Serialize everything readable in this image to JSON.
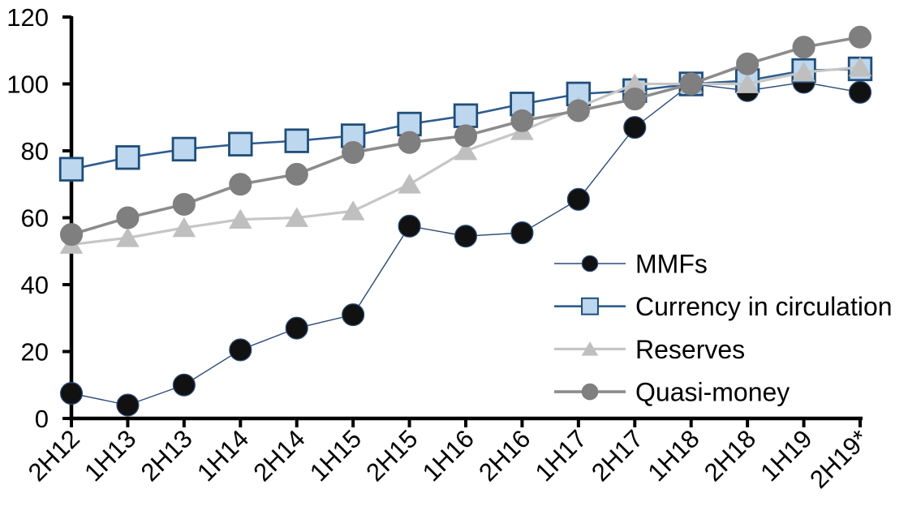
{
  "chart_data": {
    "type": "line",
    "title": "",
    "xlabel": "",
    "ylabel": "",
    "grid": false,
    "background": "#ffffff",
    "axis_color": "#000000",
    "ylim": [
      0,
      120
    ],
    "yticks": [
      0,
      20,
      40,
      60,
      80,
      100,
      120
    ],
    "legend_position": "middle-right",
    "categories": [
      "2H12",
      "1H13",
      "2H13",
      "1H14",
      "2H14",
      "1H15",
      "2H15",
      "1H16",
      "2H16",
      "1H17",
      "2H17",
      "1H18",
      "2H18",
      "1H19",
      "2H19*"
    ],
    "series": [
      {
        "name": "MMFs",
        "marker": "circle",
        "marker_fill": "#111111",
        "marker_stroke": "#2b4a78",
        "line_color": "#2b4a78",
        "line_width": 1.4,
        "values": [
          7.5,
          4,
          10,
          20.5,
          27,
          31,
          57.5,
          54.5,
          55.5,
          65.5,
          87,
          100,
          98,
          100.5,
          97.5
        ]
      },
      {
        "name": "Currency in circulation",
        "marker": "square",
        "marker_fill": "#bdd7ee",
        "marker_stroke": "#1f4e79",
        "line_color": "#2e5c8f",
        "line_width": 2.6,
        "values": [
          74.5,
          78,
          80.5,
          82,
          83,
          84.5,
          88,
          90.5,
          94,
          97,
          98,
          100,
          101,
          104,
          104.5
        ]
      },
      {
        "name": "Reserves",
        "marker": "triangle",
        "marker_fill": "#bfbfbf",
        "marker_stroke": "#bfbfbf",
        "line_color": "#c6c6c6",
        "line_width": 3.2,
        "values": [
          52,
          54,
          57,
          59.5,
          60,
          62,
          70,
          80,
          86,
          93,
          100,
          100,
          100,
          103.5,
          105
        ]
      },
      {
        "name": "Quasi-money",
        "marker": "circle",
        "marker_fill": "#7f7f7f",
        "marker_stroke": "#7f7f7f",
        "line_color": "#8c8c8c",
        "line_width": 3.6,
        "values": [
          55,
          60,
          64,
          70,
          73,
          79.5,
          82.5,
          84.5,
          89,
          92,
          95.5,
          100,
          106,
          111,
          114
        ]
      }
    ]
  }
}
